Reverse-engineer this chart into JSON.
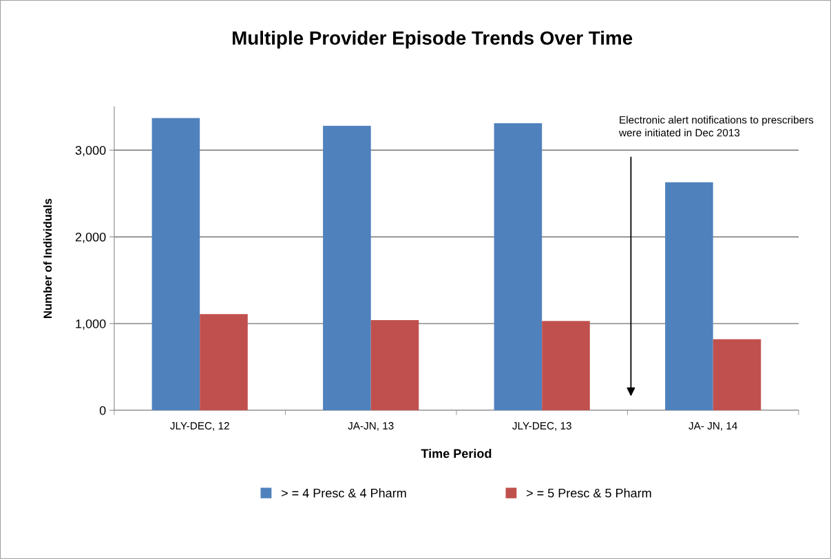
{
  "chart_data": {
    "type": "bar",
    "title": "Multiple Provider Episode Trends Over Time",
    "xlabel": "Time Period",
    "ylabel": "Number of Individuals",
    "categories": [
      "JLY-DEC, 12",
      "JA-JN, 13",
      "JLY-DEC, 13",
      "JA- JN, 14"
    ],
    "series": [
      {
        "name": "> = 4 Presc & 4 Pharm",
        "color": "#4f81bd",
        "values": [
          3370,
          3280,
          3310,
          2630
        ]
      },
      {
        "name": "> = 5 Presc & 5 Pharm",
        "color": "#c0504d",
        "values": [
          1110,
          1040,
          1030,
          820
        ]
      }
    ],
    "ylim": [
      0,
      3500
    ],
    "yticks": [
      0,
      {
        "value": 1000,
        "label": "1,000"
      },
      {
        "value": 2000,
        "label": "2,000"
      },
      {
        "value": 3000,
        "label": "3,000"
      }
    ],
    "grid": "y",
    "legend": "bottom",
    "annotations": [
      "Electronic alert notifications to prescribers\nwere initiated in Dec 2013"
    ]
  }
}
